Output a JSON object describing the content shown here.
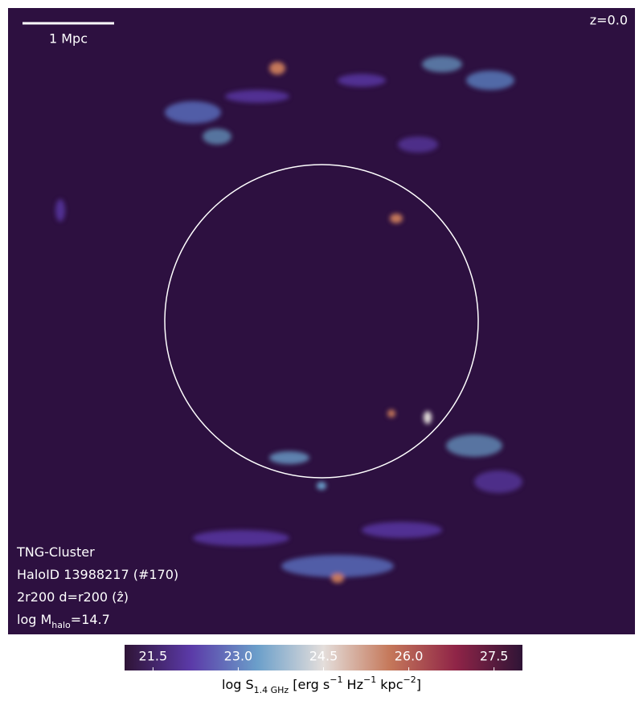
{
  "chart_data": {
    "type": "image",
    "annotations": {
      "redshift": "z=0.0",
      "scale_bar": "1 Mpc",
      "lines": [
        [
          {
            "text": "TNG-Cluster"
          }
        ],
        [
          {
            "text": "HaloID 13988217 (#170)"
          }
        ],
        [
          {
            "text": "2r200 d=r200 (ẑ)"
          }
        ],
        [
          {
            "text": "log M"
          },
          {
            "text": "halo",
            "sub": true
          },
          {
            "text": "=14.7"
          }
        ]
      ]
    },
    "colorbar": {
      "clim": [
        21,
        28
      ],
      "ticks": [
        21.5,
        {
          "value": 23,
          "label": "23.0"
        },
        24.5,
        {
          "value": 26,
          "label": "26.0"
        },
        27.5
      ],
      "colors": [
        "#2f1436",
        "#5b3aa8",
        "#6b9fca",
        "#e4dedb",
        "#c5785a",
        "#8f2447",
        "#2f1436"
      ],
      "label_parts": [
        {
          "text": "log S"
        },
        {
          "text": "1.4 GHz",
          "sub": true
        },
        {
          "text": " [erg s"
        },
        {
          "text": "−1",
          "sup": true
        },
        {
          "text": " Hz"
        },
        {
          "text": "−1",
          "sup": true
        },
        {
          "text": " kpc"
        },
        {
          "text": "−2",
          "sup": true
        },
        {
          "text": "]"
        }
      ]
    }
  }
}
